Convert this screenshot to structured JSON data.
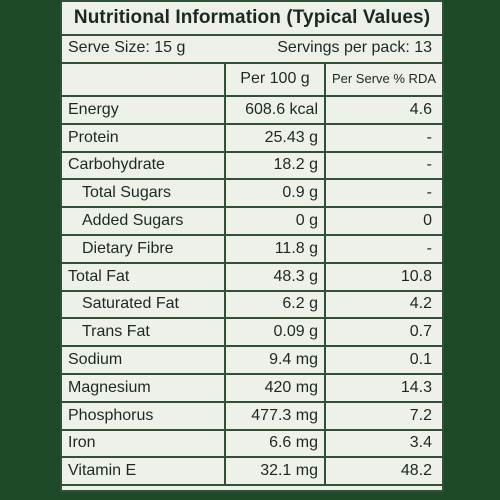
{
  "title": "Nutritional Information (Typical Values)",
  "serve_size": "Serve Size: 15 g",
  "servings_per_pack": "Servings per pack: 13",
  "headers": {
    "blank": "",
    "per_100g": "Per 100 g",
    "per_serve_rda": "Per Serve % RDA"
  },
  "rows": [
    {
      "name": "Energy",
      "per_100g": "608.6 kcal",
      "rda": "4.6"
    },
    {
      "name": "Protein",
      "per_100g": "25.43 g",
      "rda": "-"
    },
    {
      "name": "Carbohydrate",
      "per_100g": "18.2 g",
      "rda": "-"
    },
    {
      "name": "Total Sugars",
      "per_100g": "0.9 g",
      "rda": "-"
    },
    {
      "name": "Added Sugars",
      "per_100g": "0 g",
      "rda": "0"
    },
    {
      "name": "Dietary Fibre",
      "per_100g": "11.8 g",
      "rda": "-"
    },
    {
      "name": "Total Fat",
      "per_100g": "48.3 g",
      "rda": "10.8"
    },
    {
      "name": "Saturated Fat",
      "per_100g": "6.2 g",
      "rda": "4.2"
    },
    {
      "name": "Trans Fat",
      "per_100g": "0.09 g",
      "rda": "0.7"
    },
    {
      "name": "Sodium",
      "per_100g": "9.4 mg",
      "rda": "0.1"
    },
    {
      "name": "Magnesium",
      "per_100g": "420 mg",
      "rda": "14.3"
    },
    {
      "name": "Phosphorus",
      "per_100g": "477.3 mg",
      "rda": "7.2"
    },
    {
      "name": "Iron",
      "per_100g": "6.6 mg",
      "rda": "3.4"
    },
    {
      "name": "Vitamin E",
      "per_100g": "32.1 mg",
      "rda": "48.2"
    }
  ]
}
